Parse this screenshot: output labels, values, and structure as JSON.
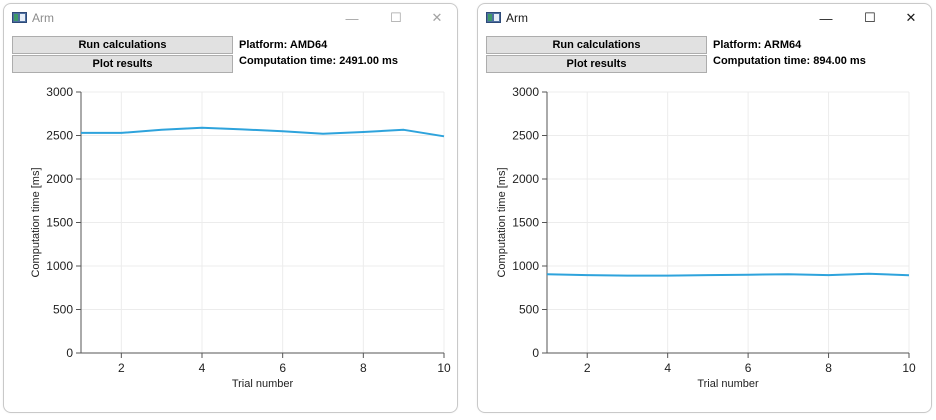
{
  "windows": [
    {
      "title": "Arm",
      "buttons": {
        "run": "Run calculations",
        "plot": "Plot results"
      },
      "platform_text": "Platform: AMD64",
      "time_text": "Computation time: 2491.00 ms",
      "chart_data": {
        "type": "line",
        "xlabel": "Trial number",
        "ylabel": "Computation time [ms]",
        "xlim": [
          1,
          10
        ],
        "ylim": [
          0,
          3000
        ],
        "xticks": [
          2,
          4,
          6,
          8,
          10
        ],
        "yticks": [
          0,
          500,
          1000,
          1500,
          2000,
          2500,
          3000
        ],
        "grid": true,
        "color": "#2ea3dc",
        "series": [
          {
            "x": [
              1,
              2,
              3,
              4,
              5,
              6,
              7,
              8,
              9,
              10
            ],
            "y": [
              2530,
              2530,
              2565,
              2590,
              2570,
              2550,
              2520,
              2540,
              2565,
              2491
            ]
          }
        ]
      }
    },
    {
      "title": "Arm",
      "buttons": {
        "run": "Run calculations",
        "plot": "Plot results"
      },
      "platform_text": "Platform: ARM64",
      "time_text": "Computation time: 894.00 ms",
      "chart_data": {
        "type": "line",
        "xlabel": "Trial number",
        "ylabel": "Computation time [ms]",
        "xlim": [
          1,
          10
        ],
        "ylim": [
          0,
          3000
        ],
        "xticks": [
          2,
          4,
          6,
          8,
          10
        ],
        "yticks": [
          0,
          500,
          1000,
          1500,
          2000,
          2500,
          3000
        ],
        "grid": true,
        "color": "#2ea3dc",
        "series": [
          {
            "x": [
              1,
              2,
              3,
              4,
              5,
              6,
              7,
              8,
              9,
              10
            ],
            "y": [
              905,
              895,
              890,
              890,
              895,
              900,
              905,
              895,
              910,
              894
            ]
          }
        ]
      }
    }
  ],
  "caption_icons": [
    "minimize-icon",
    "maximize-icon",
    "close-icon"
  ]
}
